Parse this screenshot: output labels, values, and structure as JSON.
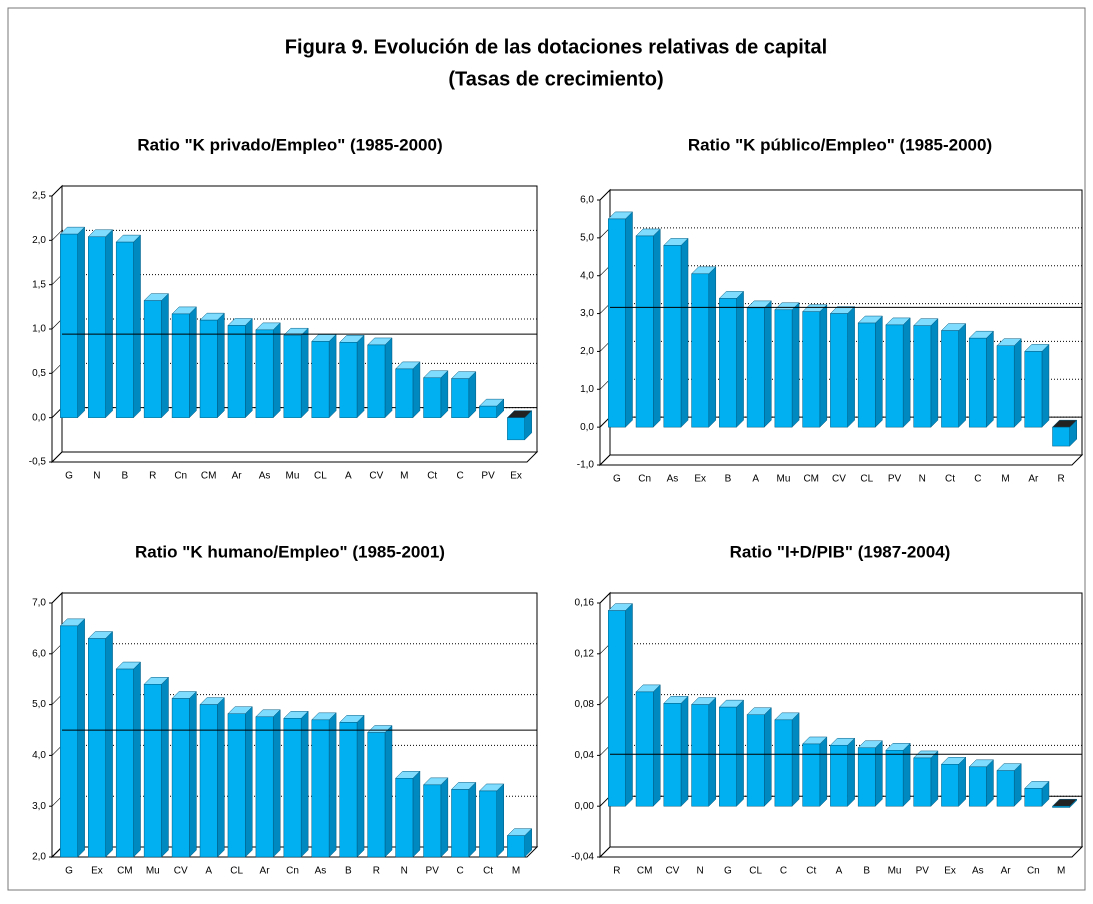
{
  "title": "Figura 9. Evolución de las dotaciones relativas de capital",
  "subtitle": "(Tasas de crecimiento)",
  "chart_data": [
    {
      "type": "bar3d",
      "title": "Ratio \"K privado/Empleo\" (1985-2000)",
      "categories": [
        "G",
        "N",
        "B",
        "R",
        "Cn",
        "CM",
        "Ar",
        "As",
        "Mu",
        "CL",
        "A",
        "CV",
        "M",
        "Ct",
        "C",
        "PV",
        "Ex"
      ],
      "values": [
        2.07,
        2.04,
        1.98,
        1.32,
        1.17,
        1.1,
        1.04,
        0.99,
        0.93,
        0.86,
        0.85,
        0.82,
        0.55,
        0.45,
        0.44,
        0.13,
        -0.25
      ],
      "mean_line": 0.83,
      "color": "#00b0f0",
      "ylim": [
        -0.5,
        2.5
      ],
      "yticks": [
        {
          "value": -0.5,
          "label": "-0,5"
        },
        {
          "value": 0,
          "label": "0,0"
        },
        {
          "value": 0.5,
          "label": "0,5"
        },
        {
          "value": 1,
          "label": "1,0"
        },
        {
          "value": 1.5,
          "label": "1,5"
        },
        {
          "value": 2,
          "label": "2,0"
        },
        {
          "value": 2.5,
          "label": "2,5"
        }
      ],
      "grid": true
    },
    {
      "type": "bar3d",
      "title": "Ratio \"K público/Empleo\" (1985-2000)",
      "categories": [
        "G",
        "Cn",
        "As",
        "Ex",
        "B",
        "A",
        "Mu",
        "CM",
        "CV",
        "CL",
        "PV",
        "N",
        "Ct",
        "C",
        "M",
        "Ar",
        "R"
      ],
      "values": [
        5.5,
        5.05,
        4.8,
        4.05,
        3.4,
        3.15,
        3.1,
        3.05,
        3.0,
        2.75,
        2.7,
        2.68,
        2.55,
        2.35,
        2.15,
        2.0,
        -0.5
      ],
      "mean_line": 2.9,
      "color": "#00b0f0",
      "ylim": [
        -1,
        6
      ],
      "yticks": [
        {
          "value": -1,
          "label": "-1,0"
        },
        {
          "value": 0,
          "label": "0,0"
        },
        {
          "value": 1,
          "label": "1,0"
        },
        {
          "value": 2,
          "label": "2,0"
        },
        {
          "value": 3,
          "label": "3,0"
        },
        {
          "value": 4,
          "label": "4,0"
        },
        {
          "value": 5,
          "label": "5,0"
        },
        {
          "value": 6,
          "label": "6,0"
        }
      ],
      "grid": true
    },
    {
      "type": "bar3d",
      "title": "Ratio \"K humano/Empleo\" (1985-2001)",
      "categories": [
        "G",
        "Ex",
        "CM",
        "Mu",
        "CV",
        "A",
        "CL",
        "Ar",
        "Cn",
        "As",
        "B",
        "R",
        "N",
        "PV",
        "C",
        "Ct",
        "M"
      ],
      "values": [
        6.55,
        6.3,
        5.7,
        5.4,
        5.12,
        5.0,
        4.82,
        4.76,
        4.73,
        4.7,
        4.65,
        4.45,
        3.55,
        3.42,
        3.33,
        3.3,
        2.42
      ],
      "mean_line": 4.3,
      "color": "#00b0f0",
      "ylim": [
        2,
        7
      ],
      "yticks": [
        {
          "value": 2,
          "label": "2,0"
        },
        {
          "value": 3,
          "label": "3,0"
        },
        {
          "value": 4,
          "label": "4,0"
        },
        {
          "value": 5,
          "label": "5,0"
        },
        {
          "value": 6,
          "label": "6,0"
        },
        {
          "value": 7,
          "label": "7,0"
        }
      ],
      "grid": true
    },
    {
      "type": "bar3d",
      "title": "Ratio \"I+D/PIB\" (1987-2004)",
      "categories": [
        "R",
        "CM",
        "CV",
        "N",
        "G",
        "CL",
        "C",
        "Ct",
        "A",
        "B",
        "Mu",
        "PV",
        "Ex",
        "As",
        "Ar",
        "Cn",
        "M"
      ],
      "values": [
        0.154,
        0.09,
        0.081,
        0.08,
        0.078,
        0.072,
        0.068,
        0.049,
        0.048,
        0.046,
        0.044,
        0.038,
        0.033,
        0.031,
        0.028,
        0.014,
        -0.001
      ],
      "mean_line": 0.033,
      "color": "#00b0f0",
      "ylim": [
        -0.04,
        0.16
      ],
      "yticks": [
        {
          "value": -0.04,
          "label": "-0,04"
        },
        {
          "value": 0,
          "label": "0,00"
        },
        {
          "value": 0.04,
          "label": "0,04"
        },
        {
          "value": 0.08,
          "label": "0,08"
        },
        {
          "value": 0.12,
          "label": "0,12"
        },
        {
          "value": 0.16,
          "label": "0,16"
        }
      ],
      "grid": true
    }
  ]
}
